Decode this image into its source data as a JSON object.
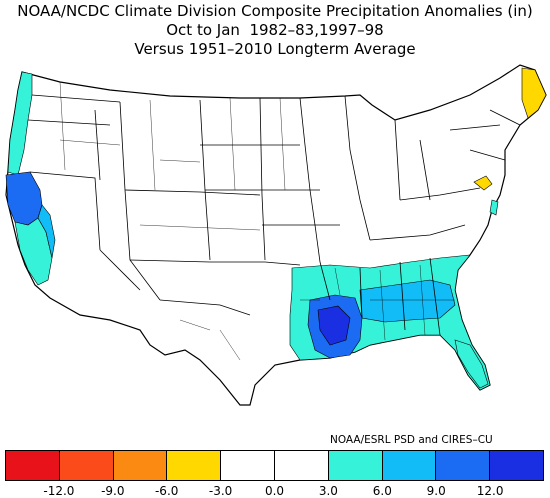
{
  "title": {
    "line1": "NOAA/NCDC Climate Division Composite Precipitation Anomalies (in)",
    "line2": "Oct to Jan  1982–83,1997–98",
    "line3": "Versus 1951–2010 Longterm Average"
  },
  "credit": "NOAA/ESRL PSD and CIRES–CU",
  "colors": {
    "land": "#ffffff",
    "border": "#000000",
    "bins": [
      "#e8121a",
      "#fc4b1b",
      "#fb8a12",
      "#ffd800",
      "#ffffff",
      "#ffffff",
      "#36f2d8",
      "#12bdf7",
      "#1c6cf3",
      "#1a2ee2"
    ]
  },
  "legend": {
    "ticks": [
      "-12.0",
      "-9.0",
      "-6.0",
      "-3.0",
      "0.0",
      "3.0",
      "6.0",
      "9.0",
      "12.0"
    ]
  },
  "regions": {
    "pacific_northwest_coast": "3–6",
    "northern_california": "6–9",
    "central_california": "3–6",
    "southern_california": "3–6",
    "gulf_coast_states": "3–6",
    "lower_mississippi_valley": "9–12",
    "southeast": "6–9",
    "florida": "3–6",
    "maine": "-6–-3",
    "pennsylvania": "-6–-3",
    "new_jersey": "3–6"
  }
}
